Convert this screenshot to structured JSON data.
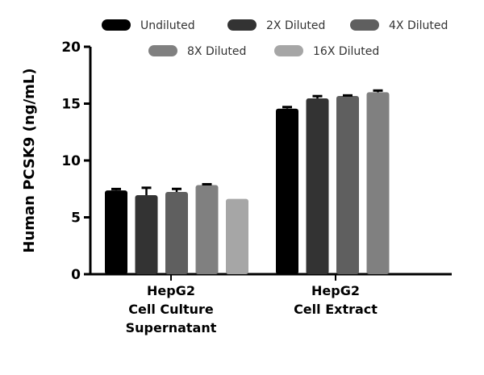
{
  "chart_data": {
    "type": "bar",
    "title": "",
    "xlabel": "",
    "ylabel": "Human PCSK9 (ng/mL)",
    "ylim": [
      0,
      20
    ],
    "yticks": [
      0,
      5,
      10,
      15,
      20
    ],
    "grid": false,
    "legend_position": "top",
    "categories": [
      [
        "HepG2",
        "Cell Culture",
        "Supernatant"
      ],
      [
        "HepG2",
        "Cell Extract"
      ]
    ],
    "series": [
      {
        "name": "Undiluted",
        "color": "#000000",
        "values": [
          7.37,
          14.56
        ],
        "errors": [
          0.12,
          0.14
        ]
      },
      {
        "name": "2X Diluted",
        "color": "#333333",
        "values": [
          6.95,
          15.46
        ],
        "errors": [
          0.65,
          0.2
        ]
      },
      {
        "name": "4X Diluted",
        "color": "#5f5f5f",
        "values": [
          7.23,
          15.67
        ],
        "errors": [
          0.27,
          0.05
        ]
      },
      {
        "name": "8X Diluted",
        "color": "#808080",
        "values": [
          7.84,
          16.0
        ],
        "errors": [
          0.07,
          0.15
        ]
      },
      {
        "name": "16X Diluted",
        "color": "#a6a6a6",
        "values": [
          6.62,
          null
        ],
        "errors": [
          0,
          null
        ]
      }
    ]
  }
}
